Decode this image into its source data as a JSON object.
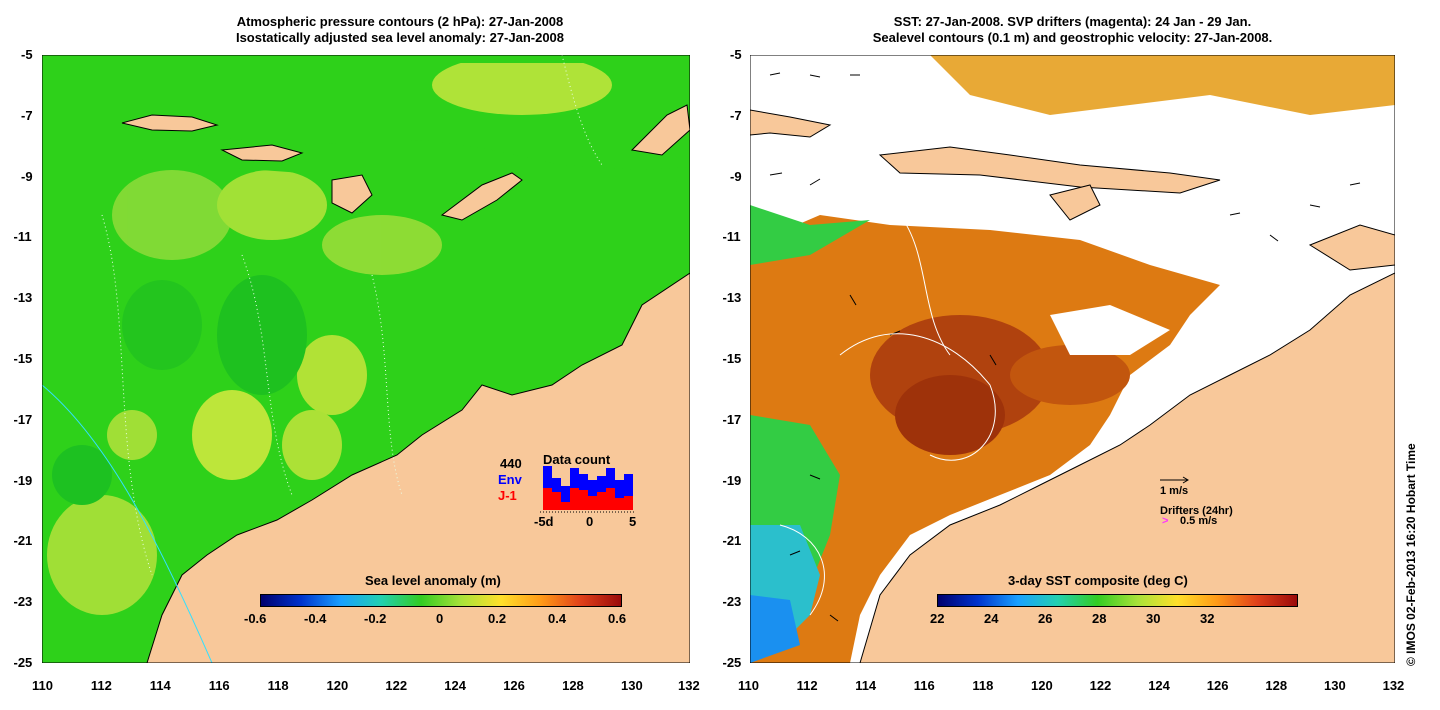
{
  "left_panel": {
    "title_line1": "Atmospheric pressure contours (2 hPa): 27-Jan-2008",
    "title_line2": "Isostatically adjusted sea level anomaly: 27-Jan-2008",
    "colorbar_title": "Sea level anomaly (m)",
    "colorbar_ticks": [
      "-0.6",
      "-0.4",
      "-0.2",
      "0",
      "0.2",
      "0.4",
      "0.6"
    ],
    "data_count": {
      "label": "Data count",
      "total": "440",
      "env_label": "Env",
      "j1_label": "J-1",
      "env_color": "#0000ff",
      "j1_color": "#ff0000",
      "axis_ticks": [
        "-5d",
        "0",
        "5"
      ]
    }
  },
  "right_panel": {
    "title_line1": "SST: 27-Jan-2008. SVP drifters (magenta): 24 Jan - 29 Jan.",
    "title_line2": "Sealevel contours (0.1 m) and geostrophic velocity: 27-Jan-2008.",
    "colorbar_title": "3-day SST composite (deg C)",
    "colorbar_ticks": [
      "22",
      "24",
      "26",
      "28",
      "30",
      "32"
    ],
    "velocity_legend": "1 m/s",
    "drifters_legend": "Drifters (24hr)",
    "drifter_speed": "0.5 m/s",
    "drifter_symbol": ">"
  },
  "axes": {
    "lat_ticks": [
      "-5",
      "-7",
      "-9",
      "-11",
      "-13",
      "-15",
      "-17",
      "-19",
      "-21",
      "-23",
      "-25"
    ],
    "left_lon_ticks": [
      "110",
      "112",
      "114",
      "116",
      "118",
      "120",
      "122",
      "124",
      "126",
      "128",
      "130"
    ],
    "right_lon_ticks": [
      "110",
      "112",
      "114",
      "116",
      "118",
      "120",
      "122",
      "124",
      "126",
      "128",
      "130",
      "132"
    ],
    "left_last_lon": "132"
  },
  "credit": "© IMOS 02-Feb-2013 16:20 Hobart Time",
  "colors": {
    "land": "#f8c89a",
    "ocean_green": "#33cc22",
    "sst_warm": "#cc5a10",
    "sst_hot": "#a8300a"
  }
}
